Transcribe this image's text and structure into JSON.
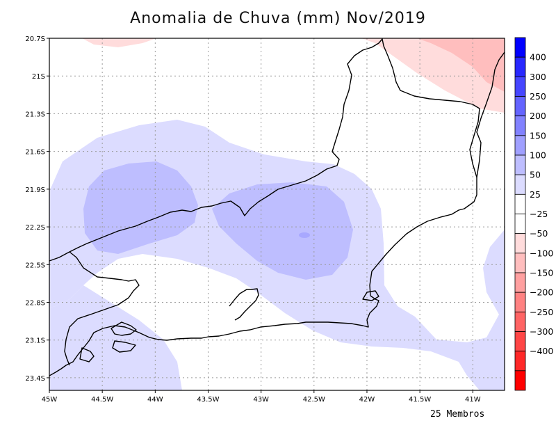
{
  "title": "Anomalia de Chuva (mm) Nov/2019",
  "footer": "25 Membros",
  "map": {
    "lon_range": [
      -45,
      -40.7
    ],
    "lat_range": [
      -23.5,
      -20.7
    ],
    "lon_ticks": [
      {
        "v": -45,
        "label": "45W"
      },
      {
        "v": -44.5,
        "label": "44.5W"
      },
      {
        "v": -44,
        "label": "44W"
      },
      {
        "v": -43.5,
        "label": "43.5W"
      },
      {
        "v": -43,
        "label": "43W"
      },
      {
        "v": -42.5,
        "label": "42.5W"
      },
      {
        "v": -42,
        "label": "42W"
      },
      {
        "v": -41.5,
        "label": "41.5W"
      },
      {
        "v": -41,
        "label": "41W"
      }
    ],
    "lat_ticks": [
      {
        "v": -20.7,
        "label": "20.7S"
      },
      {
        "v": -21,
        "label": "21S"
      },
      {
        "v": -21.3,
        "label": "21.3S"
      },
      {
        "v": -21.6,
        "label": "21.6S"
      },
      {
        "v": -21.9,
        "label": "21.9S"
      },
      {
        "v": -22.2,
        "label": "22.2S"
      },
      {
        "v": -22.5,
        "label": "22.5S"
      },
      {
        "v": -22.8,
        "label": "22.8S"
      },
      {
        "v": -23.1,
        "label": "23.1S"
      },
      {
        "v": -23.4,
        "label": "23.4S"
      }
    ],
    "grid": "dotted"
  },
  "colorbar": {
    "bins": [
      {
        "color": "#0000ff"
      },
      {
        "color": "#2828ff"
      },
      {
        "color": "#4646ff"
      },
      {
        "color": "#6464ff"
      },
      {
        "color": "#8282ff"
      },
      {
        "color": "#a0a0ff"
      },
      {
        "color": "#bebeff"
      },
      {
        "color": "#dcdcff"
      },
      {
        "color": "#ffffff"
      },
      {
        "color": "#ffffff"
      },
      {
        "color": "#ffdcdc"
      },
      {
        "color": "#ffbebe"
      },
      {
        "color": "#ffa0a0"
      },
      {
        "color": "#ff8282"
      },
      {
        "color": "#ff6464"
      },
      {
        "color": "#ff4646"
      },
      {
        "color": "#ff2828"
      },
      {
        "color": "#ff0000"
      }
    ],
    "labels": [
      "400",
      "300",
      "250",
      "200",
      "150",
      "100",
      "50",
      "25",
      "−25",
      "−50",
      "−100",
      "−150",
      "−200",
      "−250",
      "−300",
      "−400"
    ]
  },
  "colors": {
    "light_blue": "#dcdcff",
    "mid_blue": "#bebeff",
    "light_red": "#ffdcdc",
    "mid_red": "#ffbebe",
    "grid": "#9a9a9a"
  }
}
